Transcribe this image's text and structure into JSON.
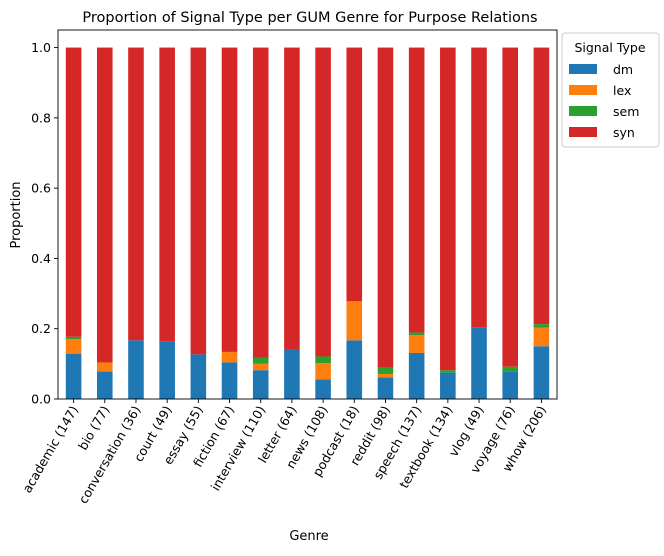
{
  "chart_data": {
    "type": "bar",
    "stacked": true,
    "title": "Proportion of Signal Type per GUM Genre for Purpose Relations",
    "xlabel": "Genre",
    "ylabel": "Proportion",
    "ylim": [
      0,
      1.05
    ],
    "yticks": [
      "0.0",
      "0.2",
      "0.4",
      "0.6",
      "0.8",
      "1.0"
    ],
    "grid": false,
    "legend_title": "Signal Type",
    "legend_position": "outside-top-right",
    "categories": [
      "academic (147)",
      "bio (77)",
      "conversation (36)",
      "court (49)",
      "essay (55)",
      "fiction (67)",
      "interview (110)",
      "letter (64)",
      "news (108)",
      "podcast (18)",
      "reddit (98)",
      "speech (137)",
      "textbook (134)",
      "vlog (49)",
      "voyage (76)",
      "whow (206)"
    ],
    "series": [
      {
        "name": "dm",
        "color": "#1f77b4",
        "values": [
          0.129,
          0.078,
          0.167,
          0.163,
          0.127,
          0.104,
          0.082,
          0.141,
          0.056,
          0.167,
          0.061,
          0.131,
          0.075,
          0.204,
          0.079,
          0.15
        ]
      },
      {
        "name": "lex",
        "color": "#ff7f0e",
        "values": [
          0.041,
          0.026,
          0.0,
          0.0,
          0.0,
          0.03,
          0.018,
          0.0,
          0.046,
          0.111,
          0.01,
          0.051,
          0.0,
          0.0,
          0.0,
          0.053
        ]
      },
      {
        "name": "sem",
        "color": "#2ca02c",
        "values": [
          0.007,
          0.0,
          0.0,
          0.0,
          0.0,
          0.0,
          0.018,
          0.0,
          0.019,
          0.0,
          0.02,
          0.007,
          0.007,
          0.0,
          0.013,
          0.01
        ]
      },
      {
        "name": "syn",
        "color": "#d62728",
        "values": [
          0.823,
          0.896,
          0.833,
          0.837,
          0.873,
          0.866,
          0.882,
          0.859,
          0.879,
          0.722,
          0.909,
          0.811,
          0.918,
          0.796,
          0.908,
          0.787
        ]
      }
    ]
  }
}
